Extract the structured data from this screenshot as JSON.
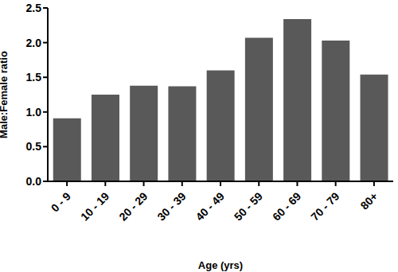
{
  "chart_data": {
    "type": "bar",
    "x_label": "Age (yrs)",
    "y_label": "Male:Female ratio",
    "categories": [
      "0 - 9",
      "10 - 19",
      "20 - 29",
      "30 - 39",
      "40 - 49",
      "50 - 59",
      "60 - 69",
      "70 - 79",
      "80+"
    ],
    "values": [
      0.91,
      1.25,
      1.38,
      1.37,
      1.6,
      2.07,
      2.34,
      2.03,
      1.54
    ],
    "color": "#595959",
    "ylim": [
      0,
      2.5
    ],
    "yticks": [
      {
        "value": 0,
        "label": "0.0"
      },
      0.5,
      {
        "value": 1,
        "label": "1.0"
      },
      1.5,
      {
        "value": 2,
        "label": "2.0"
      },
      2.5
    ],
    "grid": false
  }
}
